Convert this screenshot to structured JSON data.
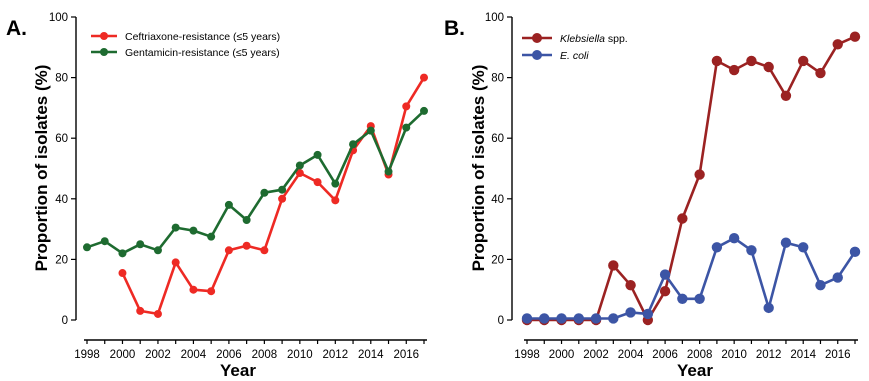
{
  "chart_data": [
    {
      "type": "line",
      "panel_label": "A.",
      "xlabel": "Year",
      "ylabel": "Proportion of isolates (%)",
      "xlim": [
        1998,
        2017
      ],
      "ylim": [
        0,
        100
      ],
      "x_ticks": [
        "1998",
        "2000",
        "2002",
        "2004",
        "2006",
        "2008",
        "2010",
        "2012",
        "2014",
        "2016"
      ],
      "y_ticks": [
        "0",
        "20",
        "40",
        "60",
        "80",
        "100"
      ],
      "legend_position": "top-left",
      "grid": false,
      "series": [
        {
          "name": "Ceftriaxone-resistance (≤5 years)",
          "color": "#ee2a24",
          "x": [
            2000,
            2001,
            2002,
            2003,
            2004,
            2005,
            2006,
            2007,
            2008,
            2009,
            2010,
            2011,
            2012,
            2013,
            2014,
            2015,
            2016,
            2017
          ],
          "y": [
            15.5,
            3,
            2,
            19,
            10,
            9.5,
            23,
            24.5,
            23,
            40,
            48.5,
            45.5,
            39.5,
            56,
            64,
            48,
            70.5,
            80
          ]
        },
        {
          "name": "Gentamicin-resistance (≤5 years)",
          "color": "#1e6b30",
          "x": [
            1998,
            1999,
            2000,
            2001,
            2002,
            2003,
            2004,
            2005,
            2006,
            2007,
            2008,
            2009,
            2010,
            2011,
            2012,
            2013,
            2014,
            2015,
            2016,
            2017
          ],
          "y": [
            24,
            26,
            22,
            25,
            23,
            30.5,
            29.5,
            27.5,
            38,
            33,
            42,
            43,
            51,
            54.5,
            45,
            58,
            62.5,
            49,
            63.5,
            69
          ]
        }
      ]
    },
    {
      "type": "line",
      "panel_label": "B.",
      "xlabel": "Year",
      "ylabel": "Proportion of isolates (%)",
      "xlim": [
        1998,
        2017
      ],
      "ylim": [
        0,
        100
      ],
      "x_ticks": [
        "1998",
        "2000",
        "2002",
        "2004",
        "2006",
        "2008",
        "2010",
        "2012",
        "2014",
        "2016"
      ],
      "y_ticks": [
        "0",
        "20",
        "40",
        "60",
        "80",
        "100"
      ],
      "legend_position": "top-left",
      "grid": false,
      "series": [
        {
          "name": "Klebsiella",
          "name_suffix": " spp.",
          "name_italic": true,
          "color": "#9b2222",
          "x": [
            1998,
            1999,
            2000,
            2001,
            2002,
            2003,
            2004,
            2005,
            2006,
            2007,
            2008,
            2009,
            2010,
            2011,
            2012,
            2013,
            2014,
            2015,
            2016,
            2017
          ],
          "y": [
            0,
            0,
            0,
            0,
            0,
            18,
            11.5,
            0,
            9.5,
            33.5,
            48,
            85.5,
            82.5,
            85.5,
            83.5,
            74,
            85.5,
            81.5,
            91,
            93.5
          ]
        },
        {
          "name": "E. coli",
          "name_suffix": "",
          "name_italic": true,
          "color": "#3c55a5",
          "x": [
            1998,
            1999,
            2000,
            2001,
            2002,
            2003,
            2004,
            2005,
            2006,
            2007,
            2008,
            2009,
            2010,
            2011,
            2012,
            2013,
            2014,
            2015,
            2016,
            2017
          ],
          "y": [
            0.5,
            0.5,
            0.5,
            0.5,
            0.5,
            0.5,
            2.5,
            2,
            15,
            7,
            7,
            24,
            27,
            23,
            4,
            25.5,
            24,
            11.5,
            14,
            22.5
          ]
        }
      ]
    }
  ]
}
